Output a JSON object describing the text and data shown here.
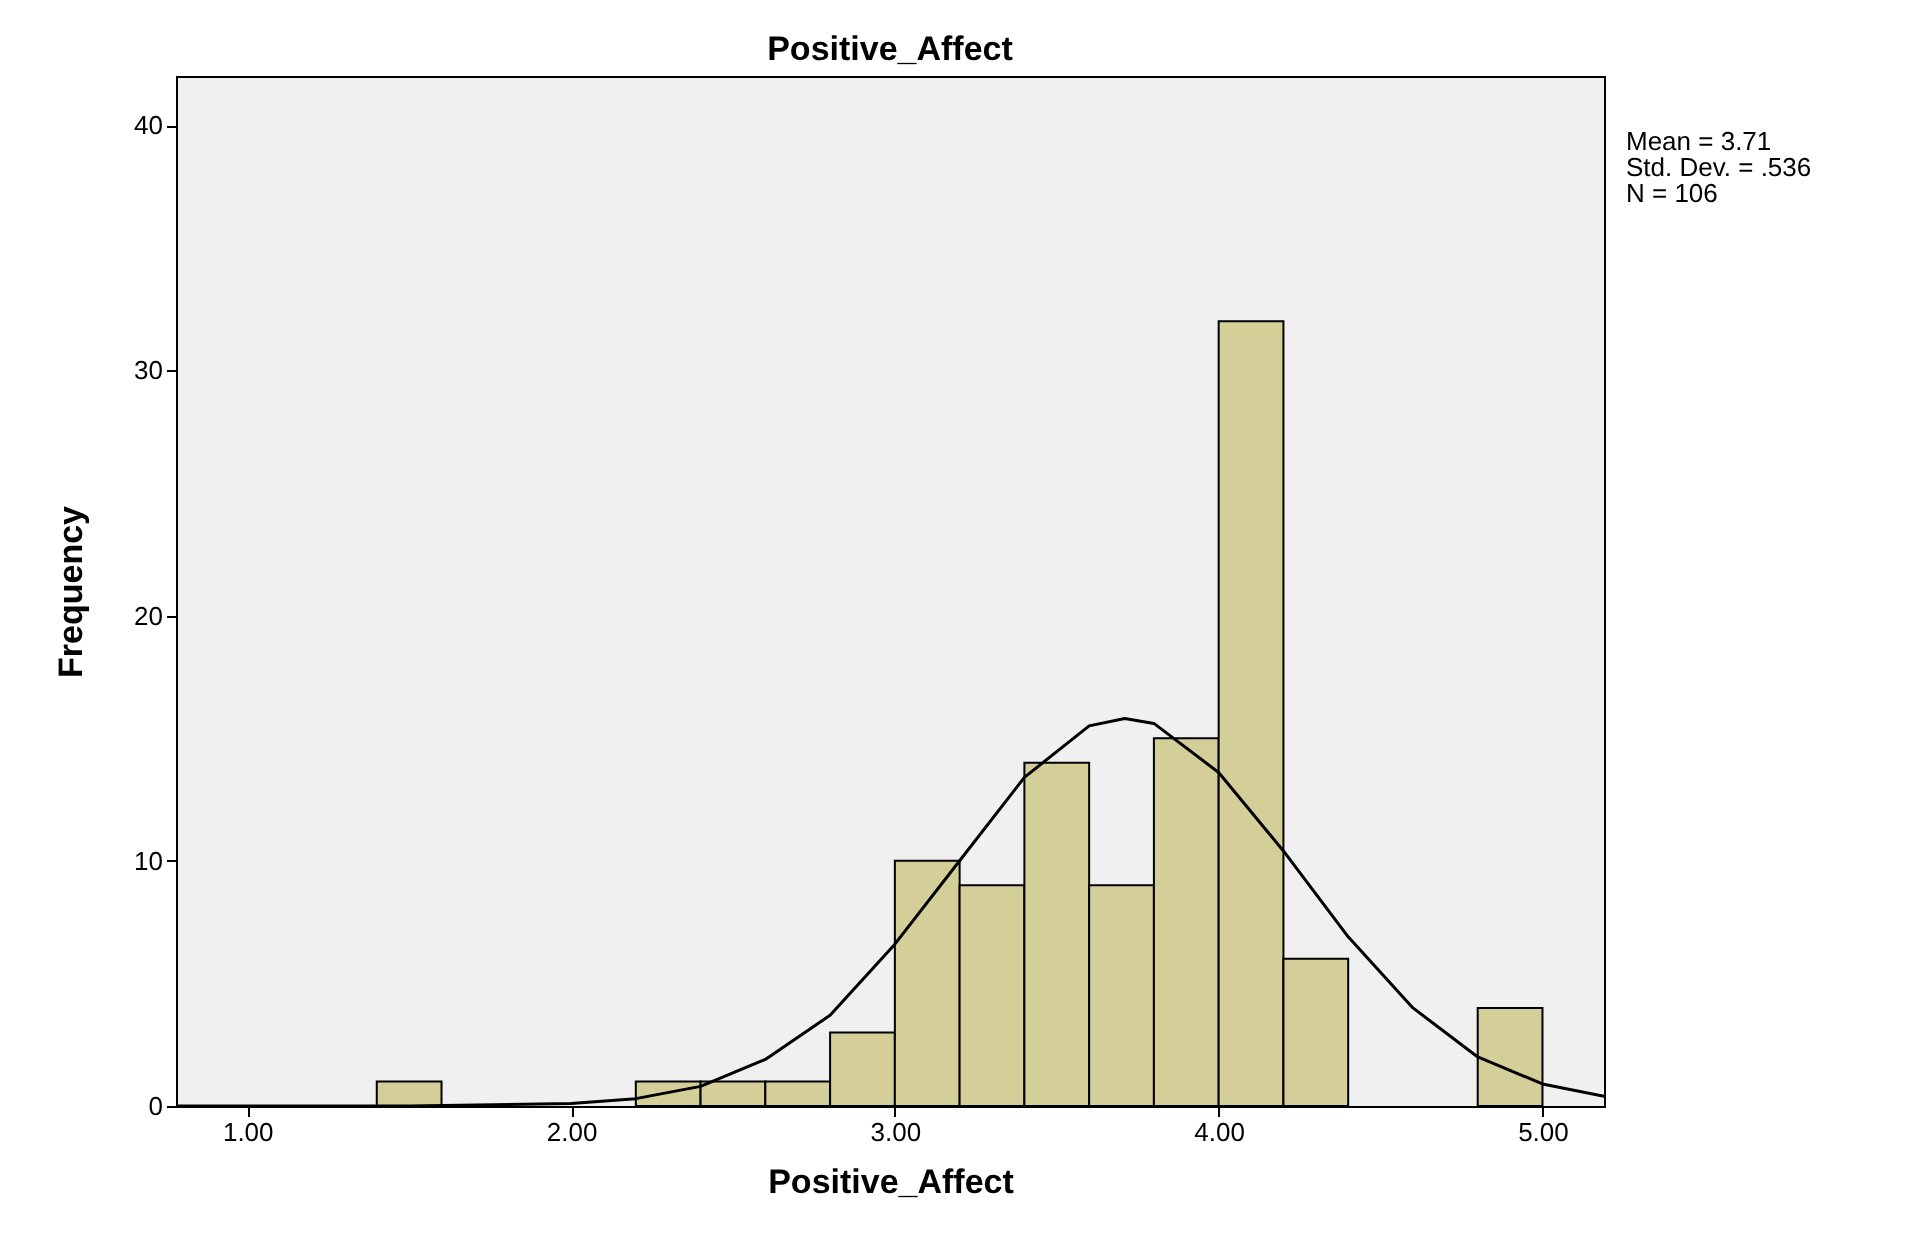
{
  "chart_data": {
    "type": "histogram",
    "title": "Positive_Affect",
    "xlabel": "Positive_Affect",
    "ylabel": "Frequency",
    "bins": [
      1.4,
      1.6,
      1.8,
      2.0,
      2.2,
      2.4,
      2.6,
      2.8,
      3.0,
      3.2,
      3.4,
      3.6,
      3.8,
      4.0,
      4.2,
      4.4,
      4.6,
      4.8,
      5.0
    ],
    "values": [
      1,
      0,
      0,
      0,
      1,
      1,
      1,
      3,
      10,
      9,
      14,
      9,
      15,
      32,
      6,
      0,
      0,
      4
    ],
    "color": "#d4cf98",
    "series": [
      {
        "type": "line",
        "color": "#000000",
        "x": [
          0.78,
          1.0,
          1.5,
          2.0,
          2.2,
          2.4,
          2.6,
          2.8,
          3.0,
          3.2,
          3.4,
          3.6,
          3.71,
          3.8,
          4.0,
          4.2,
          4.4,
          4.6,
          4.8,
          5.0,
          5.19
        ],
        "values": [
          0,
          0,
          0,
          0.1,
          0.3,
          0.8,
          1.9,
          3.7,
          6.6,
          10.0,
          13.4,
          15.5,
          15.8,
          15.6,
          13.6,
          10.4,
          6.9,
          4.0,
          2.0,
          0.9,
          0.4
        ]
      }
    ],
    "xlim": [
      0.78,
      5.19
    ],
    "ylim": [
      0,
      42
    ],
    "xticks": [
      {
        "value": 1,
        "label": "1.00"
      },
      {
        "value": 2,
        "label": "2.00"
      },
      {
        "value": 3,
        "label": "3.00"
      },
      {
        "value": 4,
        "label": "4.00"
      },
      {
        "value": 5,
        "label": "5.00"
      }
    ],
    "yticks": [
      0,
      10,
      20,
      30,
      40
    ],
    "grid": false,
    "annotations": [
      "Mean = 3.71",
      "Std. Dev. = .536",
      "N = 106"
    ]
  }
}
